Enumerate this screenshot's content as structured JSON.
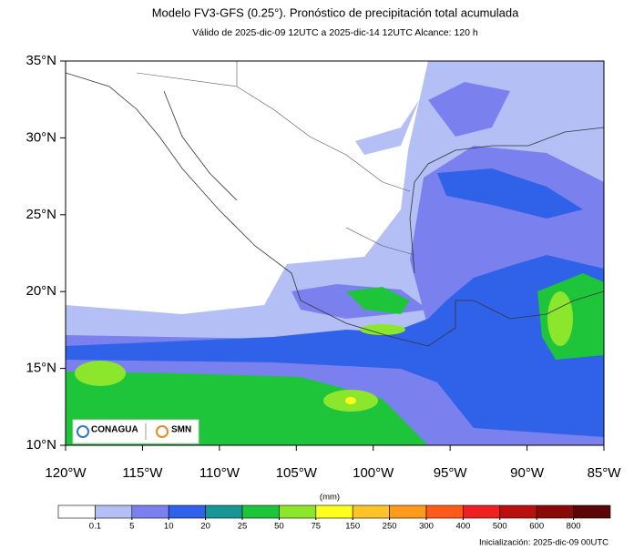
{
  "title": "Modelo FV3-GFS (0.25°). Pronóstico de precipitación total acumulada",
  "subtitle": "Válido de 2025-dic-09 12UTC a 2025-dic-14 12UTC    Alcance: 120 h",
  "map": {
    "lonlim": [
      -120,
      -85
    ],
    "latlim": [
      10,
      35
    ],
    "lonticks": [
      {
        "value": -120,
        "label": "120°W"
      },
      {
        "value": -115,
        "label": "115°W"
      },
      {
        "value": -110,
        "label": "110°W"
      },
      {
        "value": -105,
        "label": "105°W"
      },
      {
        "value": -100,
        "label": "100°W"
      },
      {
        "value": -95,
        "label": "95°W"
      },
      {
        "value": -90,
        "label": "90°W"
      },
      {
        "value": -85,
        "label": "85°W"
      }
    ],
    "latticks": [
      {
        "value": 35,
        "label": "35°N"
      },
      {
        "value": 30,
        "label": "30°N"
      },
      {
        "value": 25,
        "label": "25°N"
      },
      {
        "value": 20,
        "label": "20°N"
      },
      {
        "value": 15,
        "label": "15°N"
      },
      {
        "value": 10,
        "label": "10°N"
      }
    ]
  },
  "colorbar": {
    "unit": "(mm)",
    "levels": [
      0.1,
      5,
      10,
      20,
      25,
      50,
      75,
      150,
      250,
      300,
      400,
      500,
      600,
      800
    ],
    "colors": [
      "#ffffff",
      "#b4bff5",
      "#7a80ee",
      "#2f62e8",
      "#189595",
      "#1ec43a",
      "#8ce62c",
      "#ffff1e",
      "#ffc32a",
      "#ff9a1e",
      "#ff5a1a",
      "#ee2020",
      "#b80f0f",
      "#8a0a0a",
      "#5a0606"
    ]
  },
  "logos": [
    "CONAGUA",
    "SMN"
  ],
  "footer": "Inicialización: 2025-dic-09 00UTC"
}
